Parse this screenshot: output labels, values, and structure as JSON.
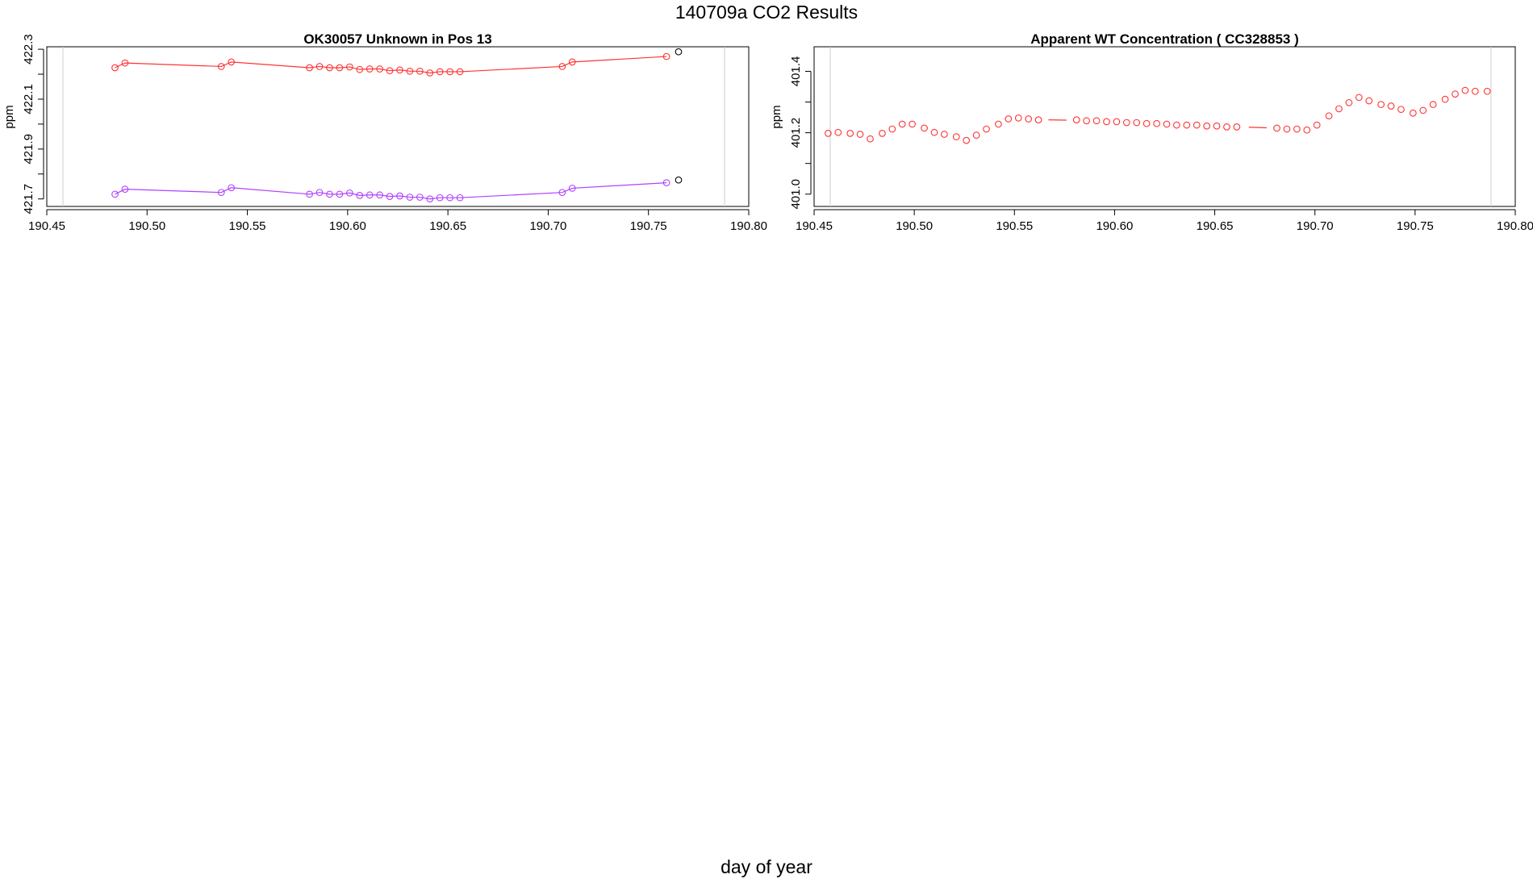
{
  "page": {
    "title": "140709a  CO2 Results",
    "footer": "day of year"
  },
  "chart_data": [
    {
      "type": "line",
      "title": "OK30057    Unknown in Pos 13",
      "xlabel": "",
      "ylabel": "ppm",
      "xlim": [
        190.45,
        190.8
      ],
      "ylim": [
        421.67,
        422.31
      ],
      "x_ticks": [
        "190.45",
        "190.50",
        "190.55",
        "190.60",
        "190.65",
        "190.70",
        "190.75",
        "190.80"
      ],
      "y_ticks": [
        "421.7",
        "421.9",
        "422.1",
        "422.3"
      ],
      "grid": false,
      "series": [
        {
          "color": "#ff3333",
          "x": [
            190.484,
            190.489,
            190.537,
            190.542,
            190.581,
            190.586,
            190.591,
            190.596,
            190.601,
            190.606,
            190.611,
            190.616,
            190.621,
            190.626,
            190.631,
            190.636,
            190.641,
            190.646,
            190.651,
            190.656,
            190.707,
            190.712,
            190.759
          ],
          "y": [
            422.226,
            422.245,
            422.231,
            422.249,
            422.226,
            422.231,
            422.226,
            422.226,
            422.229,
            422.219,
            422.221,
            422.221,
            422.214,
            422.217,
            422.212,
            422.212,
            422.205,
            422.21,
            422.21,
            422.21,
            422.231,
            422.249,
            422.271
          ]
        },
        {
          "color": "#b040ff",
          "x": [
            190.484,
            190.489,
            190.537,
            190.542,
            190.581,
            190.586,
            190.591,
            190.596,
            190.601,
            190.606,
            190.611,
            190.616,
            190.621,
            190.626,
            190.631,
            190.636,
            190.641,
            190.646,
            190.651,
            190.656,
            190.707,
            190.712,
            190.759
          ],
          "y": [
            421.719,
            421.739,
            421.726,
            421.745,
            421.719,
            421.726,
            421.719,
            421.719,
            421.724,
            421.714,
            421.716,
            421.716,
            421.71,
            421.712,
            421.707,
            421.707,
            421.7,
            421.705,
            421.705,
            421.705,
            421.726,
            421.743,
            421.765
          ]
        },
        {
          "color": "#000000",
          "x": [
            190.765,
            190.765
          ],
          "y": [
            422.29,
            421.776
          ],
          "points_only": true
        }
      ]
    },
    {
      "type": "scatter",
      "title": "Apparent WT Concentration ( CC328853 )",
      "xlabel": "",
      "ylabel": "ppm",
      "xlim": [
        190.45,
        190.8
      ],
      "ylim": [
        400.96,
        401.48
      ],
      "x_ticks": [
        "190.45",
        "190.50",
        "190.55",
        "190.60",
        "190.65",
        "190.70",
        "190.75",
        "190.80"
      ],
      "y_ticks": [
        "401.0",
        "401.2",
        "401.4"
      ],
      "grid": false,
      "series": [
        {
          "color": "#ff3333",
          "x": [
            190.457,
            190.462,
            190.468,
            190.473,
            190.478,
            190.484,
            190.489,
            190.494,
            190.499,
            190.505,
            190.51,
            190.515,
            190.521,
            190.526,
            190.531,
            190.536,
            190.542,
            190.547,
            190.552,
            190.557,
            190.562,
            190.581,
            190.586,
            190.591,
            190.596,
            190.601,
            190.606,
            190.611,
            190.616,
            190.621,
            190.626,
            190.631,
            190.636,
            190.641,
            190.646,
            190.651,
            190.656,
            190.661,
            190.681,
            190.686,
            190.691,
            190.696,
            190.701,
            190.707,
            190.712,
            190.717,
            190.722,
            190.727,
            190.733,
            190.738,
            190.743,
            190.749,
            190.754,
            190.759,
            190.765,
            190.77,
            190.775,
            190.78,
            190.786
          ],
          "y": [
            401.198,
            401.201,
            401.198,
            401.195,
            401.18,
            401.198,
            401.212,
            401.228,
            401.228,
            401.215,
            401.201,
            401.195,
            401.187,
            401.175,
            401.192,
            401.212,
            401.228,
            401.245,
            401.248,
            401.245,
            401.242,
            401.242,
            401.239,
            401.239,
            401.236,
            401.236,
            401.233,
            401.233,
            401.23,
            401.23,
            401.228,
            401.225,
            401.225,
            401.225,
            401.222,
            401.222,
            401.219,
            401.219,
            401.215,
            401.212,
            401.212,
            401.209,
            401.225,
            401.255,
            401.278,
            401.298,
            401.315,
            401.304,
            401.292,
            401.287,
            401.276,
            401.264,
            401.273,
            401.292,
            401.309,
            401.326,
            401.338,
            401.335,
            401.335
          ],
          "segment": [
            [
              190.567,
              401.242
            ],
            [
              190.576,
              401.241
            ],
            [
              190.667,
              401.218
            ],
            [
              190.676,
              401.216
            ]
          ]
        }
      ]
    }
  ]
}
